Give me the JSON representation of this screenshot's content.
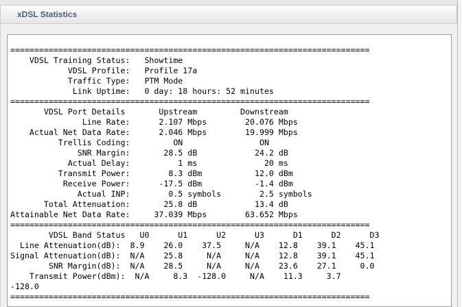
{
  "panel": {
    "title": "xDSL Statistics"
  },
  "stats_text": "===========================================================================\n    VDSL Training Status:   Showtime\n            VDSL Profile:   Profile 17a\n            Traffic Type:   PTM Mode\n             Link Uptime:   0 day: 18 hours: 52 minutes\n===========================================================================\n       VDSL Port Details       Upstream         Downstream\n               Line Rate:      2.107 Mbps        20.076 Mbps\n    Actual Net Data Rate:      2.046 Mbps        19.999 Mbps\n          Trellis Coding:         ON                ON\n              SNR Margin:       28.5 dB            24.2 dB\n            Actual Delay:          1 ms              20 ms\n          Transmit Power:        8.3 dBm           12.0 dBm\n           Receive Power:      -17.5 dBm           -1.4 dBm\n              Actual INP:        0.5 symbols        2.5 symbols\n       Total Attenuation:       25.8 dB            13.4 dB\nAttainable Net Data Rate:     37.039 Mbps        63.652 Mbps\n===========================================================================\n        VDSL Band Status   U0      U1      U2      U3      D1      D2      D3\n  Line Attenuation(dB):  8.9    26.0    37.5     N/A    12.8    39.1    45.1\nSignal Attenuation(dB):  N/A    25.8     N/A     N/A    12.8    39.1    45.1\n        SNR Margin(dB):  N/A    28.5     N/A     N/A    23.6    27.1     0.0\n    Transmit Power(dBm):  N/A     8.3  -128.0     N/A    11.3     3.7\n-128.0\n==========================================================================="
}
